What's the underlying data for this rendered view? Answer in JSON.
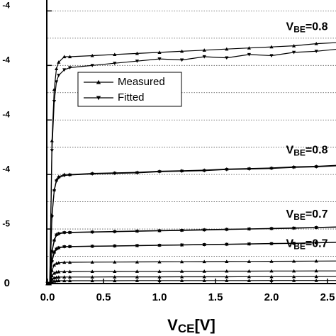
{
  "chart_data": {
    "type": "line",
    "xlabel": {
      "main": "V",
      "sub": "CE",
      "tail": "[V]"
    },
    "x": [
      0,
      0.02,
      0.04,
      0.06,
      0.08,
      0.1,
      0.15,
      0.2,
      0.4,
      0.6,
      0.8,
      1.0,
      1.2,
      1.4,
      1.6,
      1.8,
      2.0,
      2.2,
      2.4,
      2.6
    ],
    "xlim": [
      0,
      2.6
    ],
    "xticks": [
      {
        "value": 0,
        "label": "0.0"
      },
      0.5,
      {
        "value": 1,
        "label": "1.0"
      },
      1.5,
      {
        "value": 2,
        "label": "2.0"
      },
      2.5
    ],
    "ylim": [
      0,
      0.00026
    ],
    "yticks": [
      0,
      {
        "value": 5e-05,
        "label": "-5"
      },
      {
        "value": 0.0001,
        "label": "-4"
      },
      {
        "value": 0.00015,
        "label": "-4"
      },
      {
        "value": 0.0002,
        "label": "-4"
      },
      {
        "value": 0.00025,
        "label": "-4"
      }
    ],
    "ygrid": [
      2.5e-05,
      5e-05,
      7.5e-05,
      0.0001,
      0.000125,
      0.00015,
      0.000175,
      0.0002,
      0.000225,
      0.00025
    ],
    "grid": true,
    "legend": "upper-left",
    "series": [
      {
        "name": "Measured",
        "color": "#000000",
        "marker": "triangle-up",
        "curves": [
          [
            0,
            0,
            0.000131,
            0.000178,
            0.000197,
            0.000203,
            0.000208,
            0.000208,
            0.000209,
            0.00021,
            0.000211,
            0.000212,
            0.000213,
            0.000214,
            0.000215,
            0.000216,
            0.000217,
            0.000218,
            0.00022,
            0.000221
          ],
          [
            0,
            0,
            6.3e-05,
            8.6e-05,
            9.5e-05,
            9.8e-05,
            0.0001,
            0.0001,
            0.000101,
            0.0001015,
            0.000102,
            0.000103,
            0.0001035,
            0.000104,
            0.000105,
            0.0001055,
            0.000106,
            0.000107,
            0.0001075,
            0.0001085
          ],
          [
            0,
            0,
            3e-05,
            4e-05,
            4.5e-05,
            4.6e-05,
            4.7e-05,
            4.7e-05,
            4.74e-05,
            4.78e-05,
            4.82e-05,
            4.86e-05,
            4.9e-05,
            4.94e-05,
            4.98e-05,
            5.02e-05,
            5.06e-05,
            5.1e-05,
            5.15e-05,
            5.2e-05
          ],
          [
            0,
            0,
            2.1e-05,
            2.9e-05,
            3.2e-05,
            3.3e-05,
            3.4e-05,
            3.4e-05,
            3.43e-05,
            3.46e-05,
            3.49e-05,
            3.52e-05,
            3.55e-05,
            3.58e-05,
            3.61e-05,
            3.64e-05,
            3.67e-05,
            3.7e-05,
            3.75e-05,
            3.8e-05
          ],
          [
            0,
            0,
            1.2e-05,
            1.7e-05,
            1.85e-05,
            1.9e-05,
            1.95e-05,
            1.95e-05,
            1.96e-05,
            1.97e-05,
            1.98e-05,
            1.99e-05,
            2e-05,
            2.01e-05,
            2.02e-05,
            2.03e-05,
            2.04e-05,
            2.05e-05,
            2.06e-05,
            2.07e-05
          ],
          [
            0,
            0,
            7e-06,
            9.5e-06,
            1.05e-05,
            1.08e-05,
            1.1e-05,
            1.1e-05,
            1.11e-05,
            1.11e-05,
            1.12e-05,
            1.12e-05,
            1.13e-05,
            1.13e-05,
            1.14e-05,
            1.14e-05,
            1.15e-05,
            1.15e-05,
            1.16e-05,
            1.16e-05
          ],
          [
            0,
            0,
            4e-06,
            5.2e-06,
            5.7e-06,
            5.9e-06,
            6e-06,
            6e-06,
            6e-06,
            6.1e-06,
            6.1e-06,
            6.1e-06,
            6.2e-06,
            6.2e-06,
            6.2e-06,
            6.3e-06,
            6.3e-06,
            6.3e-06,
            6.4e-06,
            6.4e-06
          ],
          [
            0,
            0,
            1.6e-06,
            2.2e-06,
            2.5e-06,
            2.6e-06,
            2.6e-06,
            2.6e-06,
            2.6e-06,
            2.6e-06,
            2.7e-06,
            2.7e-06,
            2.7e-06,
            2.7e-06,
            2.7e-06,
            2.7e-06,
            2.8e-06,
            2.8e-06,
            2.8e-06,
            2.8e-06
          ]
        ]
      },
      {
        "name": "Fitted",
        "color": "#000000",
        "marker": "triangle-down",
        "curves": [
          [
            0,
            0,
            0.000122,
            0.000167,
            0.000185,
            0.000191,
            0.000196,
            0.000198,
            0.0002,
            0.000202,
            0.000204,
            0.000206,
            0.000205,
            0.000208,
            0.000207,
            0.00021,
            0.000209,
            0.000212,
            0.000213,
            0.000215
          ],
          [
            0,
            0,
            6.1e-05,
            8.5e-05,
            9.4e-05,
            9.7e-05,
            9.9e-05,
            9.95e-05,
            0.0001005,
            0.000101,
            0.0001015,
            0.0001025,
            0.000103,
            0.0001035,
            0.0001045,
            0.000105,
            0.0001055,
            0.0001065,
            0.000107,
            0.000108
          ],
          [
            0,
            0,
            2.9e-05,
            3.9e-05,
            4.45e-05,
            4.55e-05,
            4.66e-05,
            4.67e-05,
            4.71e-05,
            4.75e-05,
            4.79e-05,
            4.83e-05,
            4.87e-05,
            4.91e-05,
            4.95e-05,
            4.99e-05,
            5.03e-05,
            5.07e-05,
            5.12e-05,
            5.17e-05
          ],
          [
            0,
            0,
            2e-05,
            2.8e-05,
            3.15e-05,
            3.26e-05,
            3.37e-05,
            3.38e-05,
            3.41e-05,
            3.44e-05,
            3.47e-05,
            3.5e-05,
            3.53e-05,
            3.56e-05,
            3.59e-05,
            3.62e-05,
            3.65e-05,
            3.68e-05,
            3.73e-05,
            3.78e-05
          ]
        ]
      }
    ],
    "annotations": [
      {
        "main": "V",
        "sub": "BE",
        "tail": "=0.8",
        "x": 2.13,
        "y": 0.000235
      },
      {
        "main": "V",
        "sub": "BE",
        "tail": "=0.8",
        "x": 2.13,
        "y": 0.000122
      },
      {
        "main": "V",
        "sub": "BE",
        "tail": "=0.7",
        "x": 2.13,
        "y": 6.3e-05
      },
      {
        "main": "V",
        "sub": "BE",
        "tail": "=0.7",
        "x": 2.13,
        "y": 3.6e-05
      }
    ]
  }
}
